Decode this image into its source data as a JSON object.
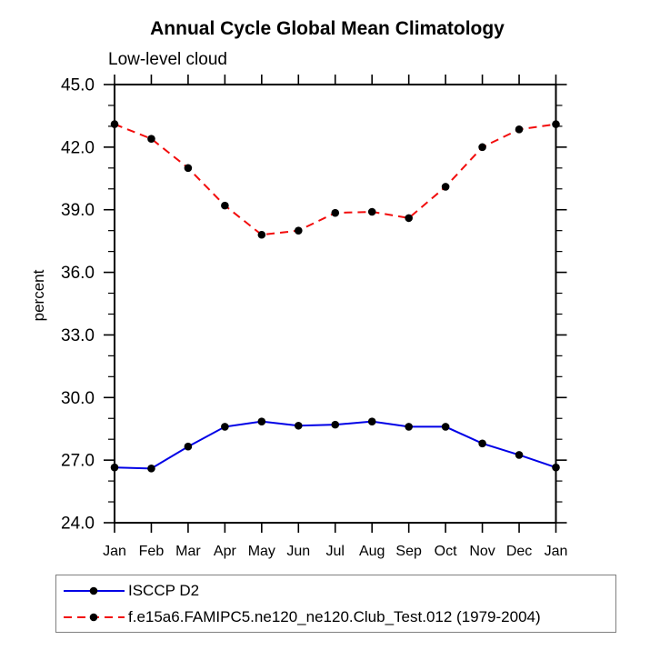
{
  "chart_data": {
    "type": "line",
    "title": "Annual Cycle Global Mean Climatology",
    "subtitle": "Low-level cloud",
    "ylabel": "percent",
    "x_categories": [
      "Jan",
      "Feb",
      "Mar",
      "Apr",
      "May",
      "Jun",
      "Jul",
      "Aug",
      "Sep",
      "Oct",
      "Nov",
      "Dec",
      "Jan"
    ],
    "ylim": [
      24.0,
      45.0
    ],
    "ytick_major_interval": 3.0,
    "ytick_minor_interval": 1.0,
    "ytick_labels": [
      "24.0",
      "27.0",
      "30.0",
      "33.0",
      "36.0",
      "39.0",
      "42.0",
      "45.0"
    ],
    "grid": false,
    "legend_position": "bottom-left",
    "series": [
      {
        "name": "ISCCP D2",
        "color": "#0000e6",
        "line_style": "solid",
        "marker": "circle",
        "marker_color": "#000000",
        "values": [
          26.65,
          26.6,
          27.65,
          28.6,
          28.85,
          28.65,
          28.7,
          28.85,
          28.6,
          28.6,
          27.8,
          27.25,
          26.65
        ]
      },
      {
        "name": "f.e15a6.FAMIPC5.ne120_ne120.Club_Test.012 (1979-2004)",
        "color": "#f20c0c",
        "line_style": "dashed",
        "marker": "circle",
        "marker_color": "#000000",
        "values": [
          43.1,
          42.4,
          41.0,
          39.2,
          37.8,
          38.0,
          38.85,
          38.9,
          38.6,
          40.1,
          42.0,
          42.85,
          43.1
        ]
      }
    ]
  }
}
